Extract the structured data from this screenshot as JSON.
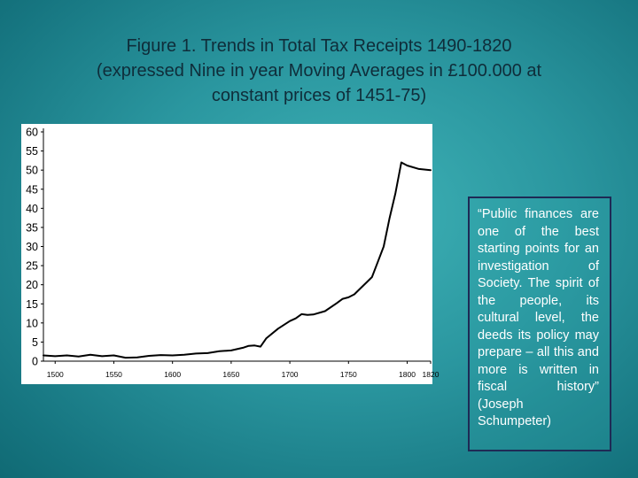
{
  "slide": {
    "title_lines": [
      "Figure 1. Trends in Total Tax Receipts 1490-1820",
      "(expressed Nine in year Moving Averages in £100.000 at",
      "constant prices of 1451-75)"
    ],
    "quote": "“Public finances are one of the best starting points for an investigation of Society. The spirit of the people, its cultural level, the deeds its policy may prepare – all this and more is written in fiscal history” (Joseph Schumpeter)"
  },
  "chart_data": {
    "type": "line",
    "title": "",
    "xlabel": "",
    "ylabel": "",
    "xlim": [
      1490,
      1820
    ],
    "ylim": [
      0,
      60
    ],
    "x_ticks": [
      1500,
      1550,
      1600,
      1650,
      1700,
      1750,
      1800,
      1820
    ],
    "y_ticks": [
      0,
      5,
      10,
      15,
      20,
      25,
      30,
      35,
      40,
      45,
      50,
      55,
      60
    ],
    "grid": false,
    "legend": "none",
    "line_color": "#000000",
    "series": [
      {
        "x": [
          1490,
          1500,
          1510,
          1520,
          1530,
          1540,
          1550,
          1560,
          1570,
          1580,
          1590,
          1600,
          1610,
          1620,
          1630,
          1640,
          1650,
          1660,
          1665,
          1670,
          1675,
          1680,
          1690,
          1700,
          1705,
          1710,
          1715,
          1720,
          1730,
          1740,
          1745,
          1750,
          1755,
          1760,
          1765,
          1770,
          1775,
          1780,
          1785,
          1790,
          1795,
          1800,
          1810,
          1820
        ],
        "y": [
          1.5,
          1.3,
          1.5,
          1.2,
          1.7,
          1.3,
          1.5,
          0.9,
          1.0,
          1.4,
          1.6,
          1.5,
          1.7,
          2.0,
          2.1,
          2.6,
          2.8,
          3.5,
          4.0,
          4.1,
          3.8,
          6.0,
          8.5,
          10.5,
          11.2,
          12.3,
          12.1,
          12.2,
          13.1,
          15.2,
          16.3,
          16.7,
          17.5,
          19.0,
          20.5,
          22.0,
          26.0,
          30.0,
          37.5,
          44.0,
          52.0,
          51.2,
          50.3,
          50.0
        ]
      }
    ]
  }
}
